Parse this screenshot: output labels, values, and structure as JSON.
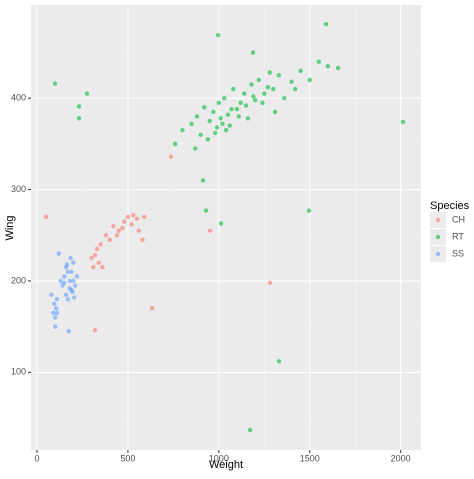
{
  "chart_data": {
    "type": "scatter",
    "x_label": "Weight",
    "y_label": "Wing",
    "legend_title": "Species",
    "xlim": [
      -33,
      2112
    ],
    "ylim": [
      15,
      502
    ],
    "xticks": [
      0,
      500,
      1000,
      1500,
      2000
    ],
    "yticks": [
      100,
      200,
      300,
      400
    ],
    "grid": true,
    "legend_position": "right",
    "series": [
      {
        "name": "CH",
        "color": "#F8766D",
        "x": [
          50,
          737,
          952,
          1282,
          319,
          633,
          300,
          330,
          360,
          380,
          420,
          450,
          480,
          500,
          520,
          550,
          560,
          580,
          340,
          310,
          350,
          470,
          440,
          400,
          320,
          590,
          530
        ],
        "values": [
          270,
          336,
          255,
          198,
          146,
          170,
          225,
          235,
          215,
          250,
          260,
          255,
          265,
          270,
          262,
          268,
          255,
          245,
          220,
          215,
          240,
          258,
          250,
          245,
          228,
          270,
          272
        ]
      },
      {
        "name": "RT",
        "color": "#00BA38",
        "x": [
          99,
          231,
          231,
          275,
          2013,
          996,
          1590,
          1496,
          930,
          1012,
          1331,
          1172,
          913,
          1656,
          1188,
          760,
          800,
          850,
          880,
          900,
          920,
          950,
          970,
          990,
          1000,
          1010,
          1030,
          1050,
          1060,
          1080,
          1100,
          1120,
          1140,
          1160,
          1180,
          1200,
          1220,
          1250,
          1280,
          1300,
          1330,
          1360,
          1400,
          1450,
          1500,
          1550,
          1600,
          940,
          980,
          1020,
          1070,
          1110,
          1150,
          1190,
          1240,
          1270,
          1310,
          1420,
          870,
          1040
        ],
        "values": [
          416,
          391,
          378,
          405,
          374,
          469,
          481,
          277,
          277,
          263,
          112,
          37,
          310,
          433,
          450,
          350,
          365,
          372,
          380,
          360,
          390,
          375,
          385,
          368,
          395,
          378,
          400,
          382,
          370,
          410,
          388,
          395,
          405,
          378,
          415,
          398,
          420,
          405,
          428,
          410,
          425,
          400,
          418,
          430,
          420,
          440,
          435,
          355,
          362,
          372,
          388,
          380,
          392,
          402,
          395,
          412,
          385,
          410,
          345,
          365
        ]
      },
      {
        "name": "SS",
        "color": "#619CFF",
        "x": [
          80,
          90,
          95,
          100,
          105,
          110,
          120,
          130,
          140,
          150,
          160,
          170,
          180,
          190,
          200,
          210,
          220,
          100,
          110,
          150,
          160,
          170,
          180,
          190,
          200,
          175,
          165,
          185,
          195,
          205
        ],
        "values": [
          185,
          165,
          175,
          160,
          170,
          180,
          230,
          200,
          195,
          205,
          215,
          210,
          200,
          190,
          220,
          195,
          205,
          150,
          165,
          198,
          185,
          180,
          192,
          210,
          200,
          145,
          218,
          225,
          188,
          182
        ]
      }
    ]
  }
}
